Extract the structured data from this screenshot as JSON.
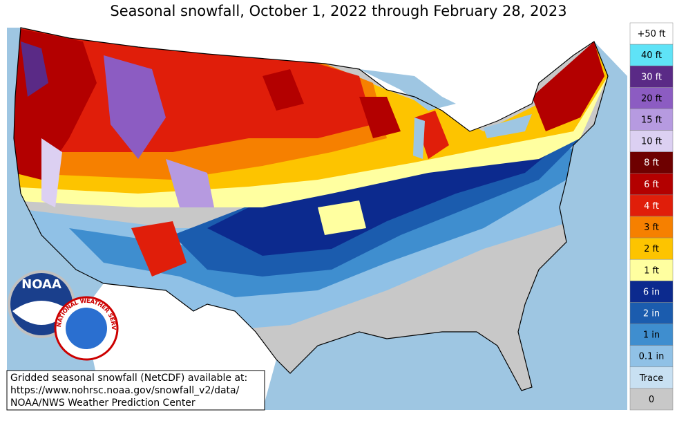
{
  "title": "Seasonal snowfall, October 1, 2022 through February 28, 2023",
  "legend": [
    {
      "label": "+50 ft",
      "color": "#ffffff"
    },
    {
      "label": "40 ft",
      "color": "#5fe3f7"
    },
    {
      "label": "30 ft",
      "color": "#5a2a86"
    },
    {
      "label": "20 ft",
      "color": "#8c5cc2"
    },
    {
      "label": "15 ft",
      "color": "#b69ae0"
    },
    {
      "label": "10 ft",
      "color": "#dcd0f2"
    },
    {
      "label": "8 ft",
      "color": "#6e0000"
    },
    {
      "label": "6 ft",
      "color": "#b30000"
    },
    {
      "label": "4 ft",
      "color": "#e01e0a"
    },
    {
      "label": "3 ft",
      "color": "#f68000"
    },
    {
      "label": "2 ft",
      "color": "#fdc400"
    },
    {
      "label": "1 ft",
      "color": "#ffffa0"
    },
    {
      "label": "6 in",
      "color": "#0c2a8e"
    },
    {
      "label": "2 in",
      "color": "#1b5cae"
    },
    {
      "label": "1 in",
      "color": "#3f8ecf"
    },
    {
      "label": "0.1 in",
      "color": "#90c1e6"
    },
    {
      "label": "Trace",
      "color": "#c8e0f2"
    },
    {
      "label": "0",
      "color": "#c8c8c8"
    }
  ],
  "note": [
    "Gridded seasonal snowfall (NetCDF) available at:",
    "https://www.nohrsc.noaa.gov/snowfall_v2/data/",
    "NOAA/NWS Weather Prediction Center"
  ],
  "logos": {
    "noaa": "NOAA",
    "nws": "NATIONAL WEATHER SERVICE"
  }
}
